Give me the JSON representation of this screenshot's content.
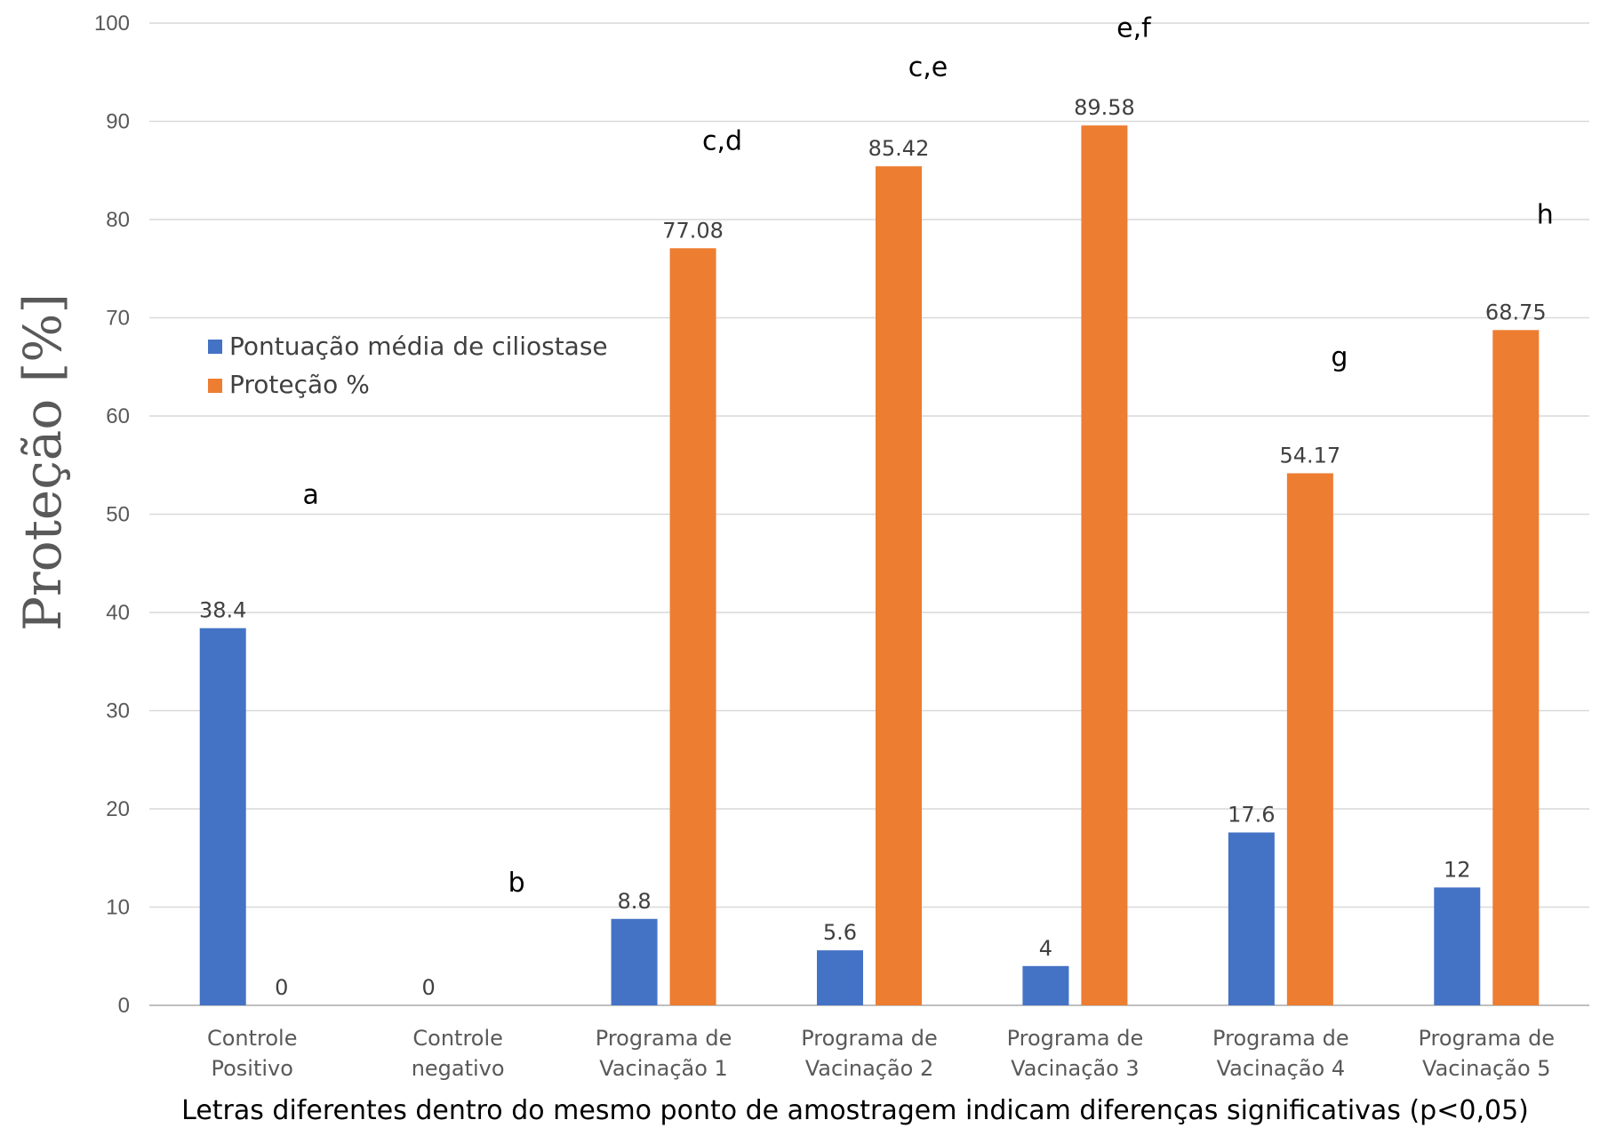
{
  "chart_data": {
    "type": "bar",
    "categories": [
      [
        "Controle",
        "Positivo"
      ],
      [
        "Controle",
        "negativo"
      ],
      [
        "Programa de",
        "Vacinação 1"
      ],
      [
        "Programa de",
        "Vacinação 2"
      ],
      [
        "Programa de",
        "Vacinação 3"
      ],
      [
        "Programa de",
        "Vacinação 4"
      ],
      [
        "Programa de",
        "Vacinação 5"
      ]
    ],
    "series": [
      {
        "name": "Pontuação média de ciliostase",
        "color": "#4472C4",
        "values": [
          38.4,
          0,
          8.8,
          5.6,
          4,
          17.6,
          12
        ],
        "labels": [
          "38.4",
          "0",
          "8.8",
          "5.6",
          "4",
          "17.6",
          "12"
        ]
      },
      {
        "name": "Proteção %",
        "color": "#ED7D31",
        "values": [
          0,
          null,
          77.08,
          85.42,
          89.58,
          54.17,
          68.75
        ],
        "labels": [
          "0",
          "",
          "77.08",
          "85.42",
          "89.58",
          "54.17",
          "68.75"
        ]
      }
    ],
    "significance_letters": [
      {
        "text": "a",
        "category": 0,
        "value": 52
      },
      {
        "text": "b",
        "category": 1,
        "value": 12.5
      },
      {
        "text": "c,d",
        "category": 2,
        "value": 88
      },
      {
        "text": "c,e",
        "category": 3,
        "value": 95.5
      },
      {
        "text": "e,f",
        "category": 4,
        "value": 99.5
      },
      {
        "text": "g",
        "category": 5,
        "value": 66
      },
      {
        "text": "h",
        "category": 6,
        "value": 80.5
      }
    ],
    "title": "",
    "ylabel": "Proteção [%]",
    "xlabel": "Letras diferentes dentro do mesmo ponto de amostragem indicam diferenças significativas (p<0,05)",
    "ylim": [
      0,
      100
    ],
    "yticks": [
      0,
      10,
      20,
      30,
      40,
      50,
      60,
      70,
      80,
      90,
      100
    ],
    "grid": true,
    "legend_position": "left, middle"
  }
}
